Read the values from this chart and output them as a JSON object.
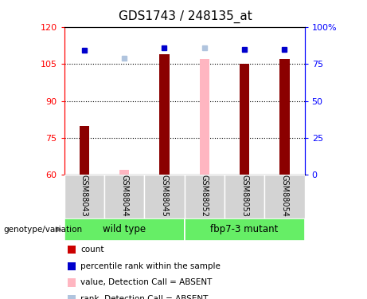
{
  "title": "GDS1743 / 248135_at",
  "samples": [
    "GSM88043",
    "GSM88044",
    "GSM88045",
    "GSM88052",
    "GSM88053",
    "GSM88054"
  ],
  "ylim_left": [
    60,
    120
  ],
  "ylim_right": [
    0,
    100
  ],
  "yticks_left": [
    60,
    75,
    90,
    105,
    120
  ],
  "yticks_right": [
    0,
    25,
    50,
    75,
    100
  ],
  "bar_color_present": "#8B0000",
  "bar_color_absent": "#FFB6C1",
  "dot_color_present": "#0000CD",
  "dot_color_absent": "#B0C4DE",
  "bar_data": [
    {
      "sample": "GSM88043",
      "value": 80,
      "rank": 84,
      "absent": false
    },
    {
      "sample": "GSM88044",
      "value": 62,
      "rank": 79,
      "absent": true
    },
    {
      "sample": "GSM88045",
      "value": 109,
      "rank": 86,
      "absent": false
    },
    {
      "sample": "GSM88052",
      "value": 107,
      "rank": 86,
      "absent": true
    },
    {
      "sample": "GSM88053",
      "value": 105,
      "rank": 85,
      "absent": false
    },
    {
      "sample": "GSM88054",
      "value": 107,
      "rank": 85,
      "absent": false
    }
  ],
  "legend_items": [
    {
      "label": "count",
      "color": "#CC0000"
    },
    {
      "label": "percentile rank within the sample",
      "color": "#0000CC"
    },
    {
      "label": "value, Detection Call = ABSENT",
      "color": "#FFB6C1"
    },
    {
      "label": "rank, Detection Call = ABSENT",
      "color": "#B0C4DE"
    }
  ],
  "grid_yticks": [
    75,
    90,
    105
  ],
  "plot_bg_color": "#ffffff",
  "label_area_color": "#D3D3D3",
  "group_label_color": "#66EE66",
  "bar_width": 0.25,
  "title_fontsize": 11
}
